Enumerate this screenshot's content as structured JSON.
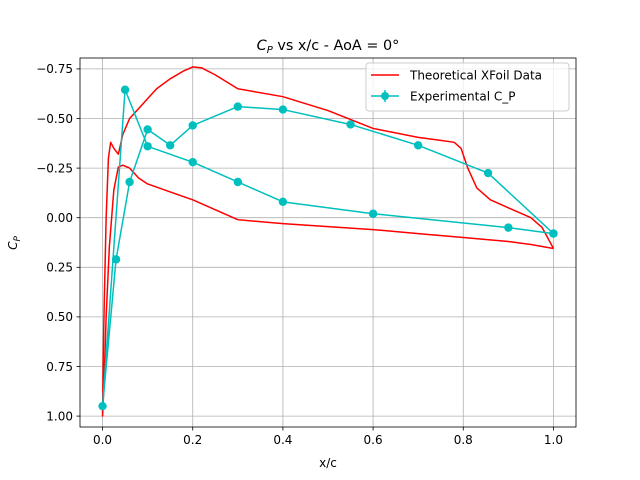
{
  "chart_data": {
    "type": "line",
    "title_main": "C",
    "title_sub": "P",
    "title_rest": " vs x/c - AoA = 0°",
    "xlabel": "x/c",
    "ylabel_main": "C",
    "ylabel_sub": "P",
    "xlim": [
      -0.05,
      1.05
    ],
    "ylim": [
      1.055,
      -0.805
    ],
    "y_inverted": true,
    "grid": true,
    "legend_position": "top-right",
    "x_ticks": [
      0.0,
      0.2,
      0.4,
      0.6,
      0.8,
      1.0
    ],
    "x_tick_labels": [
      "0.0",
      "0.2",
      "0.4",
      "0.6",
      "0.8",
      "1.0"
    ],
    "y_ticks": [
      -0.75,
      -0.5,
      -0.25,
      0.0,
      0.25,
      0.5,
      0.75,
      1.0
    ],
    "y_tick_labels": [
      "−0.75",
      "−0.50",
      "−0.25",
      "0.00",
      "0.25",
      "0.50",
      "0.75",
      "1.00"
    ],
    "series": [
      {
        "name": "Theoretical XFoil Data",
        "kind": "line",
        "color": "#ff0000",
        "points": [
          [
            1.0,
            0.155
          ],
          [
            0.95,
            0.135
          ],
          [
            0.9,
            0.12
          ],
          [
            0.8,
            0.1
          ],
          [
            0.7,
            0.08
          ],
          [
            0.6,
            0.06
          ],
          [
            0.5,
            0.045
          ],
          [
            0.4,
            0.03
          ],
          [
            0.3,
            0.01
          ],
          [
            0.2,
            -0.09
          ],
          [
            0.15,
            -0.13
          ],
          [
            0.1,
            -0.17
          ],
          [
            0.08,
            -0.2
          ],
          [
            0.06,
            -0.25
          ],
          [
            0.045,
            -0.265
          ],
          [
            0.035,
            -0.255
          ],
          [
            0.025,
            -0.14
          ],
          [
            0.015,
            0.15
          ],
          [
            0.008,
            0.5
          ],
          [
            0.003,
            0.85
          ],
          [
            0.0,
            1.0
          ],
          [
            0.0015,
            0.7
          ],
          [
            0.004,
            0.4
          ],
          [
            0.008,
            0.0
          ],
          [
            0.013,
            -0.3
          ],
          [
            0.018,
            -0.38
          ],
          [
            0.025,
            -0.35
          ],
          [
            0.035,
            -0.32
          ],
          [
            0.045,
            -0.42
          ],
          [
            0.06,
            -0.5
          ],
          [
            0.08,
            -0.55
          ],
          [
            0.1,
            -0.6
          ],
          [
            0.12,
            -0.65
          ],
          [
            0.15,
            -0.7
          ],
          [
            0.18,
            -0.74
          ],
          [
            0.2,
            -0.76
          ],
          [
            0.22,
            -0.755
          ],
          [
            0.25,
            -0.72
          ],
          [
            0.3,
            -0.65
          ],
          [
            0.4,
            -0.61
          ],
          [
            0.5,
            -0.54
          ],
          [
            0.6,
            -0.45
          ],
          [
            0.7,
            -0.405
          ],
          [
            0.75,
            -0.39
          ],
          [
            0.78,
            -0.38
          ],
          [
            0.795,
            -0.35
          ],
          [
            0.81,
            -0.25
          ],
          [
            0.83,
            -0.15
          ],
          [
            0.86,
            -0.09
          ],
          [
            0.9,
            -0.05
          ],
          [
            0.95,
            0.0
          ],
          [
            0.975,
            0.05
          ],
          [
            1.0,
            0.155
          ]
        ]
      },
      {
        "name": "Experimental C_P",
        "kind": "line-marker-errorbar",
        "color": "#00bfbf",
        "points": [
          [
            1.0,
            0.08
          ],
          [
            0.9,
            0.05
          ],
          [
            0.6,
            -0.02
          ],
          [
            0.4,
            -0.08
          ],
          [
            0.3,
            -0.18
          ],
          [
            0.2,
            -0.28
          ],
          [
            0.1,
            -0.36
          ],
          [
            0.05,
            -0.645
          ],
          [
            0.0,
            0.95
          ],
          [
            0.03,
            0.21
          ],
          [
            0.06,
            -0.18
          ],
          [
            0.1,
            -0.445
          ],
          [
            0.15,
            -0.365
          ],
          [
            0.2,
            -0.465
          ],
          [
            0.3,
            -0.56
          ],
          [
            0.4,
            -0.545
          ],
          [
            0.55,
            -0.47
          ],
          [
            0.7,
            -0.365
          ],
          [
            0.855,
            -0.225
          ],
          [
            1.0,
            0.08
          ]
        ]
      }
    ]
  }
}
